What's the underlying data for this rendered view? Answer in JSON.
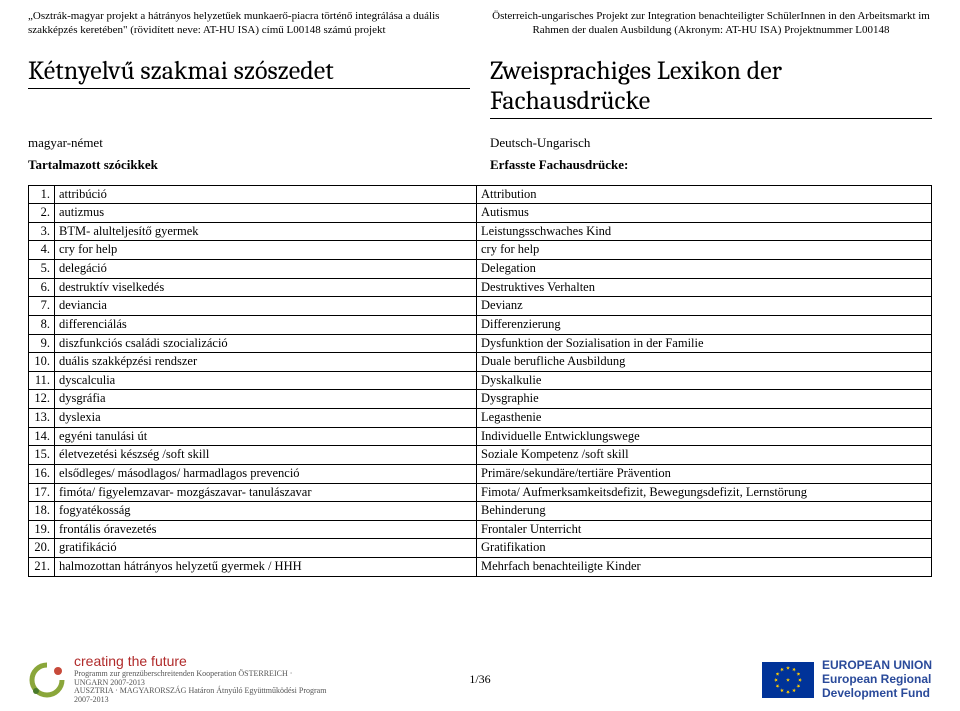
{
  "header_left": "„Osztrák-magyar projekt a hátrányos helyzetűek munkaerő-piacra történő integrálása a duális szakképzés keretében\" (rövidített neve: AT-HU ISA) című L00148 számú projekt",
  "header_right": "Österreich-ungarisches Projekt zur Integration benachteiligter SchülerInnen in den Arbeitsmarkt im Rahmen der dualen Ausbildung (Akronym: AT-HU ISA) Projektnummer L00148",
  "title_left": "Kétnyelvű szakmai szószedet",
  "title_right": "Zweisprachiges Lexikon der Fachausdrücke",
  "sub_left_1": "magyar-német",
  "sub_left_2": "Tartalmazott szócikkek",
  "sub_right_1": "Deutsch-Ungarisch",
  "sub_right_2": "Erfasste Fachausdrücke:",
  "rows": [
    {
      "n": "1.",
      "hu": "attribúció",
      "de": "Attribution"
    },
    {
      "n": "2.",
      "hu": "autizmus",
      "de": "Autismus"
    },
    {
      "n": "3.",
      "hu": "BTM- alulteljesítő gyermek",
      "de": "Leistungsschwaches Kind"
    },
    {
      "n": "4.",
      "hu": "cry for help",
      "de": "cry for help"
    },
    {
      "n": "5.",
      "hu": "delegáció",
      "de": "Delegation"
    },
    {
      "n": "6.",
      "hu": "destruktív viselkedés",
      "de": "Destruktives Verhalten"
    },
    {
      "n": "7.",
      "hu": "deviancia",
      "de": "Devianz"
    },
    {
      "n": "8.",
      "hu": "differenciálás",
      "de": "Differenzierung"
    },
    {
      "n": "9.",
      "hu": "diszfunkciós családi szocializáció",
      "de": "Dysfunktion der Sozialisation in der Familie"
    },
    {
      "n": "10.",
      "hu": "duális szakképzési rendszer",
      "de": "Duale berufliche Ausbildung"
    },
    {
      "n": "11.",
      "hu": "dyscalculia",
      "de": "Dyskalkulie"
    },
    {
      "n": "12.",
      "hu": "dysgráfia",
      "de": "Dysgraphie"
    },
    {
      "n": "13.",
      "hu": "dyslexia",
      "de": "Legasthenie"
    },
    {
      "n": "14.",
      "hu": "egyéni tanulási út",
      "de": "Individuelle Entwicklungswege"
    },
    {
      "n": "15.",
      "hu": "életvezetési készség /soft skill",
      "de": "Soziale Kompetenz /soft skill"
    },
    {
      "n": "16.",
      "hu": "elsődleges/ másodlagos/ harmadlagos prevenció",
      "de": "Primäre/sekundäre/tertiäre Prävention"
    },
    {
      "n": "17.",
      "hu": "fimóta/ figyelemzavar- mozgászavar- tanulászavar",
      "de": "Fimota/ Aufmerksamkeitsdefizit, Bewegungsdefizit, Lernstörung"
    },
    {
      "n": "18.",
      "hu": "fogyatékosság",
      "de": "Behinderung"
    },
    {
      "n": "19.",
      "hu": "frontális óravezetés",
      "de": "Frontaler Unterricht"
    },
    {
      "n": "20.",
      "hu": "gratifikáció",
      "de": "Gratifikation"
    },
    {
      "n": "21.",
      "hu": "halmozottan hátrányos helyzetű gyermek / HHH",
      "de": "Mehrfach benachteiligte Kinder"
    }
  ],
  "page_number": "1/36",
  "logo_left": {
    "brand": "creating the future",
    "line1": "Programm zur grenzüberschreitenden Kooperation ÖSTERREICH · UNGARN 2007-2013",
    "line2": "AUSZTRIA · MAGYARORSZÁG Határon Átnyúló Együttműködési Program 2007-2013"
  },
  "logo_right": {
    "l1": "EUROPEAN UNION",
    "l2": "European Regional",
    "l3": "Development Fund"
  },
  "colors": {
    "text": "#000000",
    "brand_red": "#b02a2a",
    "eu_blue": "#2a4a9a",
    "eu_flag_blue": "#003399",
    "eu_flag_yellow": "#ffcc00"
  }
}
